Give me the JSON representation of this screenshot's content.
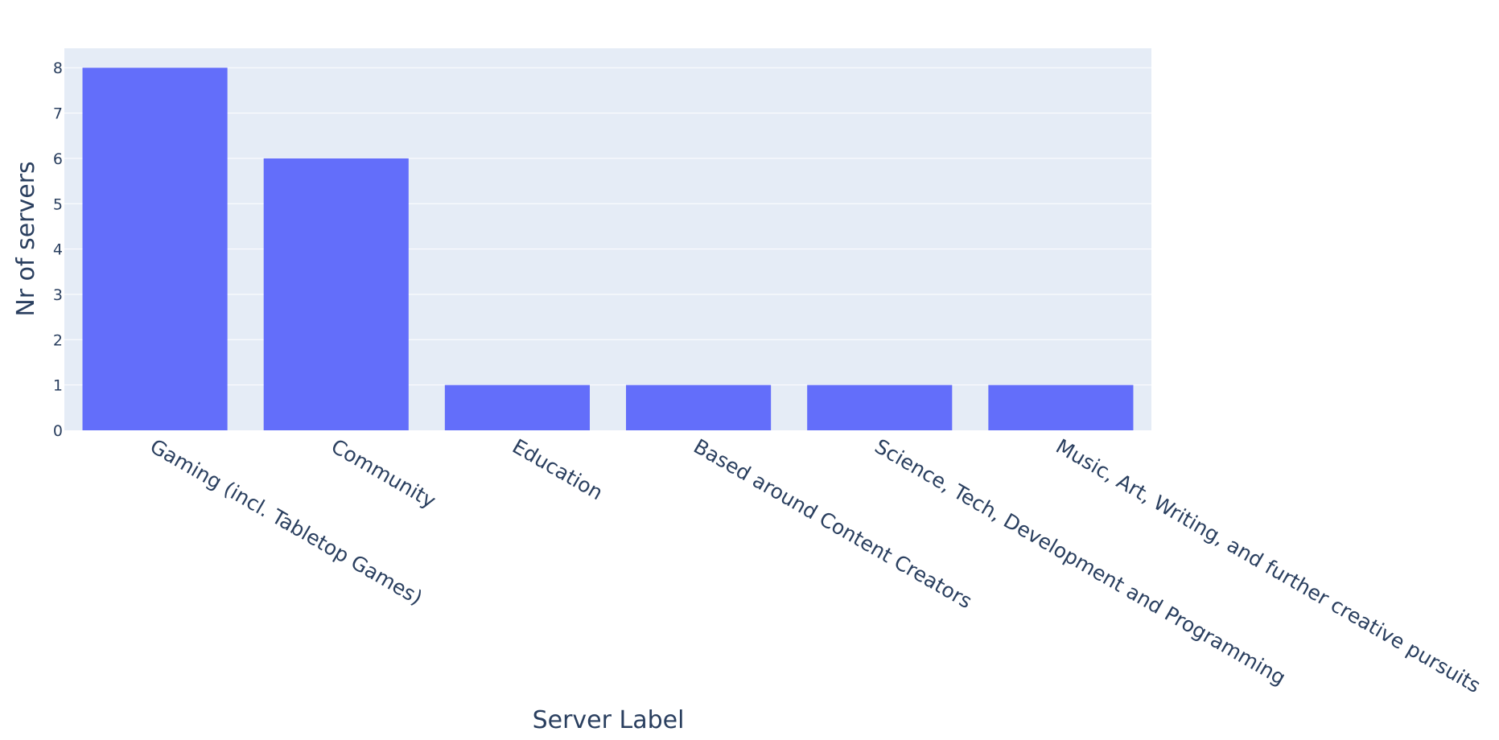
{
  "chart_data": {
    "type": "bar",
    "title": "",
    "xlabel": "Server Label",
    "ylabel": "Nr of servers",
    "categories": [
      "Gaming (incl. Tabletop Games)",
      "Community",
      "Education",
      "Based around Content Creators",
      "Science, Tech, Development and Programming",
      "Music, Art, Writing, and further creative pursuits"
    ],
    "values": [
      8,
      6,
      1,
      1,
      1,
      1
    ],
    "ylim": [
      0,
      8.43
    ],
    "yticks": [
      0,
      1,
      2,
      3,
      4,
      5,
      6,
      7,
      8
    ],
    "grid": true,
    "legend": "none",
    "colors": {
      "bar": "#636efa",
      "plot_background": "#e5ecf6",
      "gridline": "#ffffff",
      "text": "#2a3f5f"
    }
  }
}
